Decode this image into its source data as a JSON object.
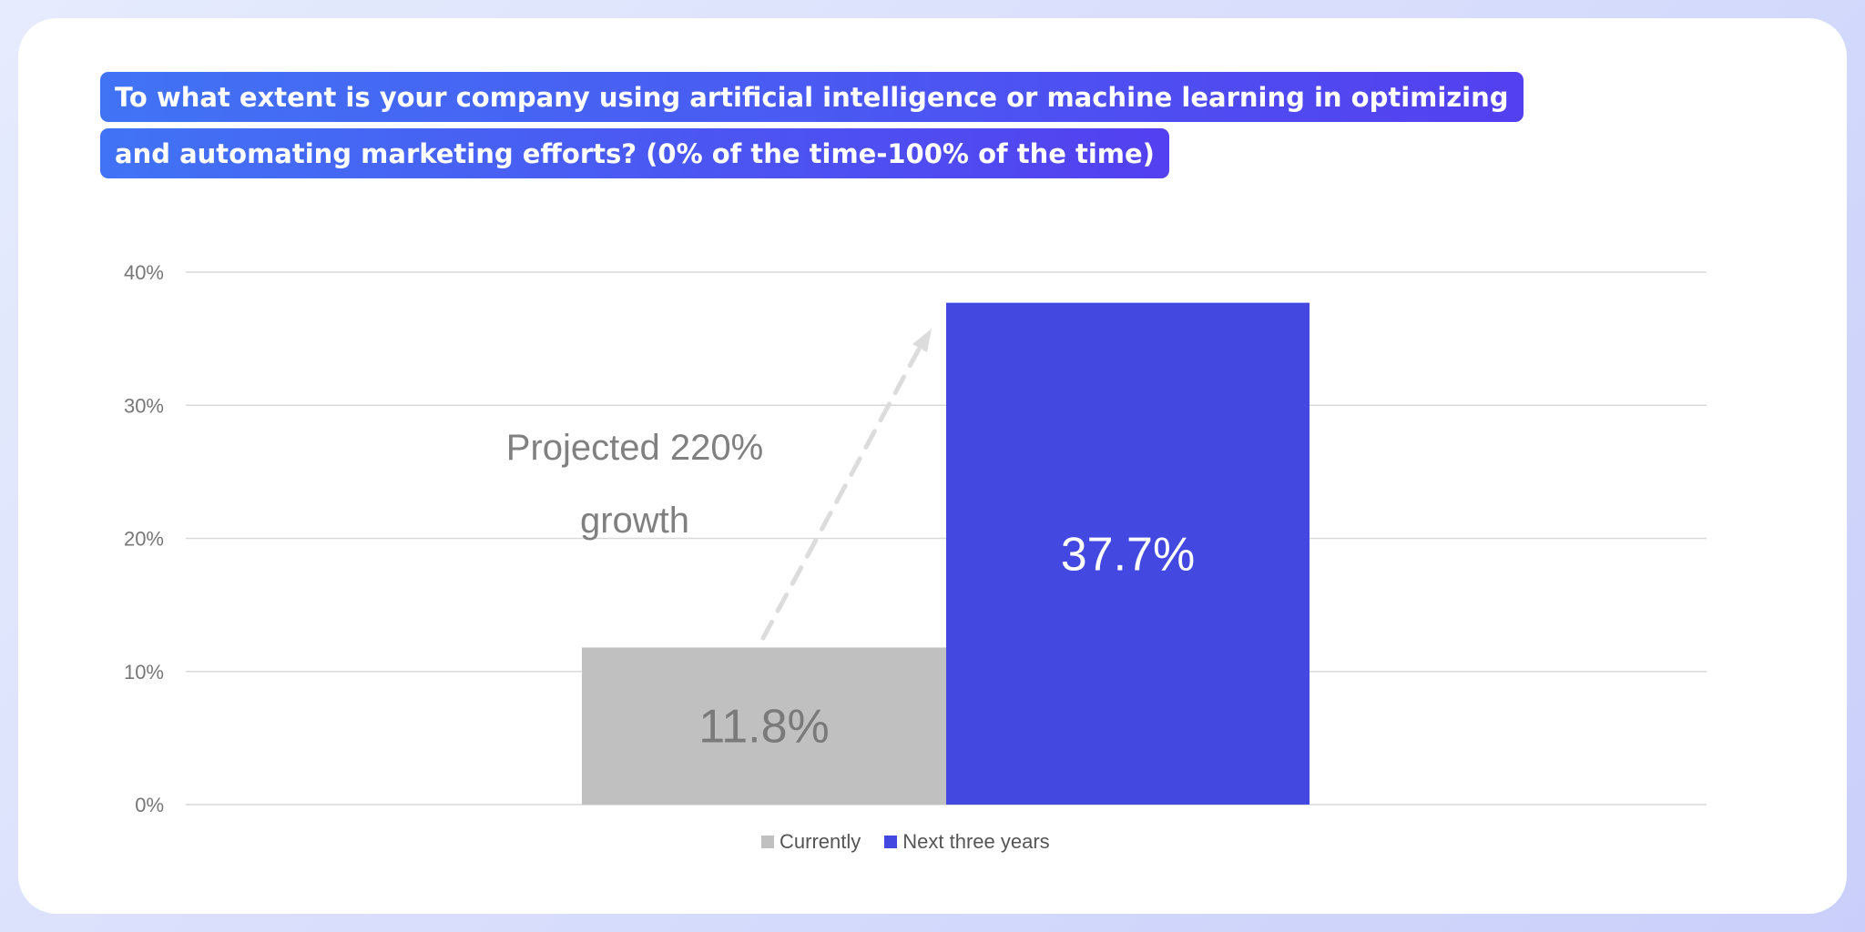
{
  "title": {
    "line1": "To what extent is your company using artificial intelligence or machine learning in optimizing",
    "line2": "and automating marketing efforts? (0% of the time-100% of the time)"
  },
  "colors": {
    "currently": "#bfc0bf",
    "next": "#4349e0",
    "grid": "#d9d9d9",
    "tick_text": "#777777",
    "annotation_text": "#808080",
    "arrow": "#dcdcdc"
  },
  "chart_data": {
    "type": "bar",
    "categories": [
      "Currently",
      "Next three years"
    ],
    "values": [
      11.8,
      37.7
    ],
    "value_labels": [
      "11.8%",
      "37.7%"
    ],
    "ylim": [
      0,
      40
    ],
    "yticks": [
      0,
      10,
      20,
      30,
      40
    ],
    "ytick_labels": [
      "0%",
      "10%",
      "20%",
      "30%",
      "40%"
    ],
    "grid": true,
    "legend": [
      "Currently",
      "Next three years"
    ],
    "legend_position": "bottom",
    "annotation": {
      "line1": "Projected 220%",
      "line2": "growth"
    }
  }
}
